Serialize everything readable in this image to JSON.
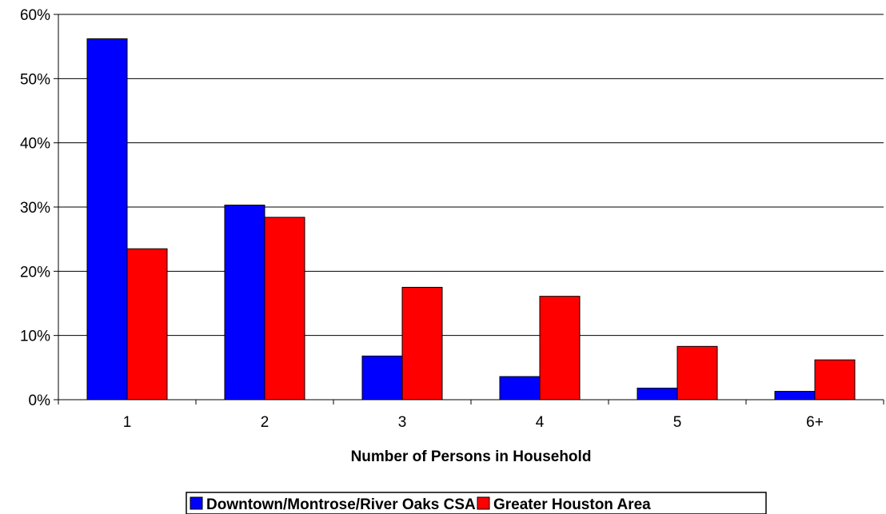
{
  "chart_data": {
    "type": "bar",
    "title": "",
    "xlabel": "Number of Persons in Household",
    "ylabel": "",
    "categories": [
      "1",
      "2",
      "3",
      "4",
      "5",
      "6+"
    ],
    "ylim": [
      0,
      60
    ],
    "yticks": [
      "0%",
      "10%",
      "20%",
      "30%",
      "40%",
      "50%",
      "60%"
    ],
    "grid": true,
    "legend_position": "bottom",
    "series": [
      {
        "name": "Downtown/Montrose/River Oaks CSA",
        "color": "#0000ff",
        "values": [
          56.2,
          30.3,
          6.8,
          3.6,
          1.8,
          1.3
        ]
      },
      {
        "name": "Greater Houston Area",
        "color": "#ff0000",
        "values": [
          23.5,
          28.4,
          17.5,
          16.1,
          8.3,
          6.2
        ]
      }
    ]
  }
}
